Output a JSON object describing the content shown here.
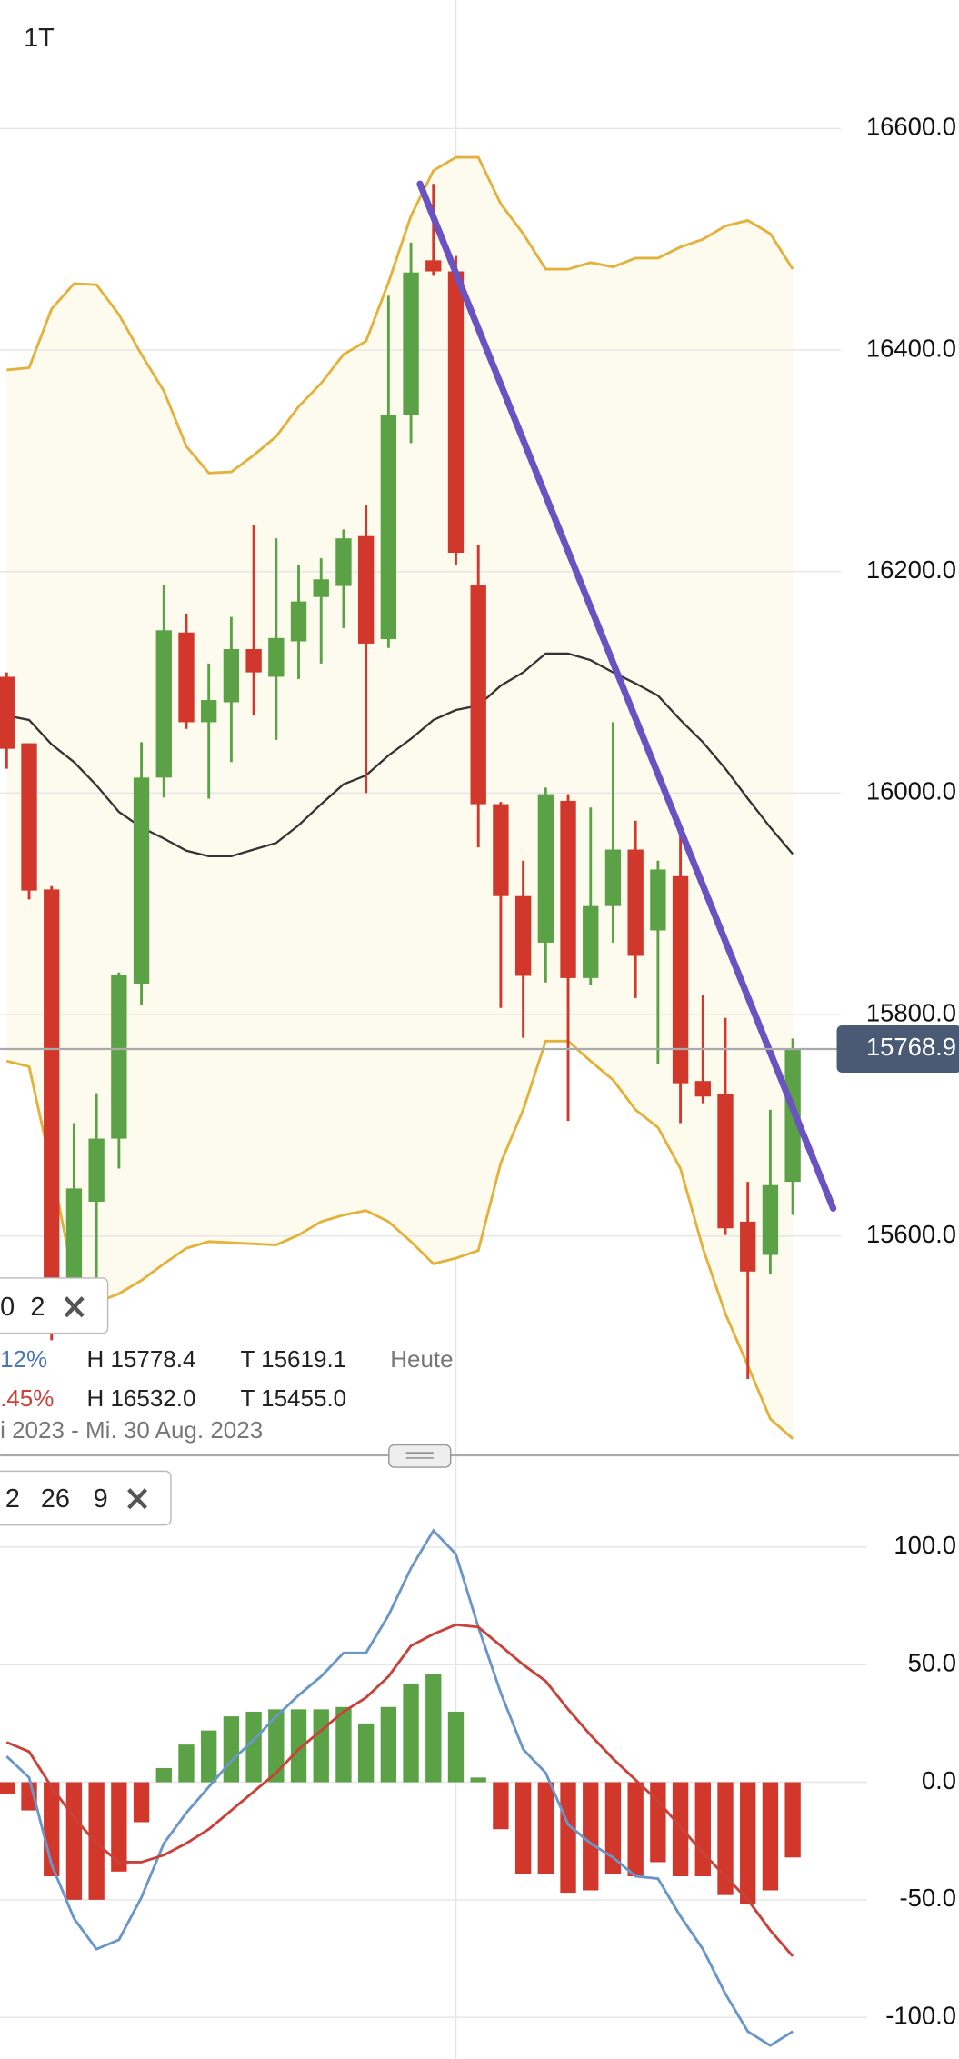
{
  "header": {
    "timeframe": "1T"
  },
  "chart_data": [
    {
      "type": "candlestick",
      "open": [
        16105,
        16045,
        15913,
        15548,
        15631,
        15688,
        15828,
        16014,
        16145,
        16064,
        16082,
        16130,
        16105,
        16137,
        16177,
        16187,
        16232,
        16139,
        16341,
        16481,
        16471,
        16188,
        15990,
        15907,
        15865,
        15993,
        15833,
        15898,
        15949,
        15876,
        15925,
        15740,
        15728,
        15613,
        15583,
        15649
      ],
      "high": [
        16109,
        16045,
        15916,
        15702,
        15729,
        15838,
        16046,
        16188,
        16162,
        16117,
        16159,
        16242,
        16230,
        16206,
        16212,
        16238,
        16260,
        16449,
        16497,
        16550,
        16485,
        16224,
        15992,
        15939,
        16005,
        15999,
        15987,
        16064,
        15975,
        15939,
        15969,
        15818,
        15797,
        15649,
        15714,
        15778.4
      ],
      "low": [
        16022,
        15904,
        15506,
        15512,
        15542,
        15661,
        15809,
        15996,
        16058,
        15995,
        16028,
        16070,
        16048,
        16103,
        16117,
        16149,
        16000,
        16131,
        16316,
        16467,
        16206,
        15951,
        15806,
        15779,
        15829,
        15704,
        15827,
        15865,
        15815,
        15755,
        15702,
        15720,
        15601,
        15471,
        15566,
        15619.1
      ],
      "close": [
        16040,
        15912,
        15548,
        15643,
        15688,
        15836,
        16014,
        16147,
        16064,
        16084,
        16130,
        16109,
        16140,
        16173,
        16193,
        16230,
        16135,
        16341,
        16470,
        16471,
        16217,
        15990,
        15907,
        15835,
        15999,
        15833,
        15898,
        15949,
        15853,
        15931,
        15738,
        15726,
        15607,
        15568,
        15646,
        15768.9
      ],
      "up_color": "#5ba145",
      "down_color": "#d1372b",
      "bands": {
        "upper": [
          16382,
          16384,
          16437,
          16460,
          16459,
          16432,
          16396,
          16363,
          16313,
          16289,
          16290,
          16305,
          16322,
          16349,
          16370,
          16396,
          16408,
          16461,
          16521,
          16562,
          16574,
          16574,
          16532,
          16505,
          16473,
          16473,
          16479,
          16475,
          16483,
          16483,
          16493,
          16500,
          16512,
          16517,
          16505,
          16473
        ],
        "middle": [
          16070,
          16066,
          16044,
          16028,
          16007,
          15983,
          15969,
          15959,
          15948,
          15943,
          15943,
          15949,
          15955,
          15971,
          15990,
          16008,
          16016,
          16034,
          16049,
          16066,
          16075,
          16079,
          16097,
          16109,
          16126,
          16126,
          16120,
          16109,
          16099,
          16088,
          16066,
          16046,
          16022,
          15995,
          15969,
          15945
        ],
        "lower": [
          15758,
          15753,
          15661,
          15560,
          15540,
          15548,
          15560,
          15575,
          15589,
          15595,
          15594,
          15593,
          15592,
          15601,
          15613,
          15619,
          15623,
          15613,
          15595,
          15575,
          15580,
          15587,
          15666,
          15714,
          15776,
          15776,
          15758,
          15741,
          15714,
          15698,
          15661,
          15589,
          15530,
          15483,
          15435,
          15417
        ],
        "band_color": "#e3b23c",
        "middle_color": "#333333",
        "fill": "#fdfaee"
      },
      "trendline": {
        "x": [
          18.4,
          36.8
        ],
        "values": [
          16550,
          15625
        ],
        "color": "#6a52c0"
      },
      "last_price": 15768.9,
      "last_price_color": "#4a5a75",
      "ylim": [
        15402,
        16716
      ],
      "yticks": [
        {
          "value": 15600,
          "label": "15600.0"
        },
        {
          "value": 15800,
          "label": "15800.0"
        },
        {
          "value": 16000,
          "label": "16000.0"
        },
        {
          "value": 16200,
          "label": "16200.0"
        },
        {
          "value": 16400,
          "label": "16400.0"
        },
        {
          "value": 16600,
          "label": "16600.0"
        }
      ],
      "grid": true
    },
    {
      "type": "macd",
      "histogram": [
        -5,
        -12,
        -40,
        -50,
        -50,
        -38,
        -17,
        6,
        16,
        22,
        28,
        30,
        31,
        31,
        31,
        32,
        25,
        32,
        42,
        46,
        30,
        2,
        -20,
        -39,
        -39,
        -47,
        -46,
        -39,
        -40,
        -34,
        -40,
        -40,
        -48,
        -52,
        -46,
        -32
      ],
      "macd": [
        11,
        2,
        -35,
        -58,
        -71,
        -67,
        -49,
        -26,
        -13,
        -2,
        9,
        18,
        28,
        37,
        45,
        55,
        55,
        71,
        91,
        107,
        97,
        66,
        38,
        14,
        4,
        -18,
        -26,
        -32,
        -40,
        -41,
        -57,
        -71,
        -90,
        -106,
        -112,
        -106
      ],
      "signal": [
        17,
        13,
        -2,
        -15,
        -26,
        -34,
        -34,
        -31,
        -26,
        -20,
        -12,
        -4,
        4,
        14,
        22,
        30,
        36,
        45,
        58,
        63,
        67,
        66,
        58,
        50,
        43,
        31,
        20,
        10,
        1,
        -8,
        -19,
        -30,
        -40,
        -50,
        -63,
        -74
      ],
      "up_color": "#5ba145",
      "down_color": "#d1372b",
      "macd_color": "#6a96c8",
      "signal_color": "#c8423a",
      "ylim": [
        -118,
        139
      ],
      "yticks": [
        {
          "value": -100,
          "label": "-100.0"
        },
        {
          "value": -50,
          "label": "-50.0"
        },
        {
          "value": 0,
          "label": "0.0"
        },
        {
          "value": 50,
          "label": "50.0"
        },
        {
          "value": 100,
          "label": "100.0"
        }
      ],
      "grid": true
    }
  ],
  "bollinger_box": {
    "params": [
      "0",
      "2"
    ]
  },
  "info": {
    "row1": {
      "change": "12%",
      "high": "H 15778.4",
      "low": "T 15619.1",
      "period": "Heute"
    },
    "row2": {
      "change": ".45%",
      "high": "H 16532.0",
      "low": "T 15455.0"
    },
    "range": "i 2023 - Mi. 30 Aug. 2023"
  },
  "macd_box": {
    "params": [
      "2",
      "26",
      "9"
    ]
  }
}
